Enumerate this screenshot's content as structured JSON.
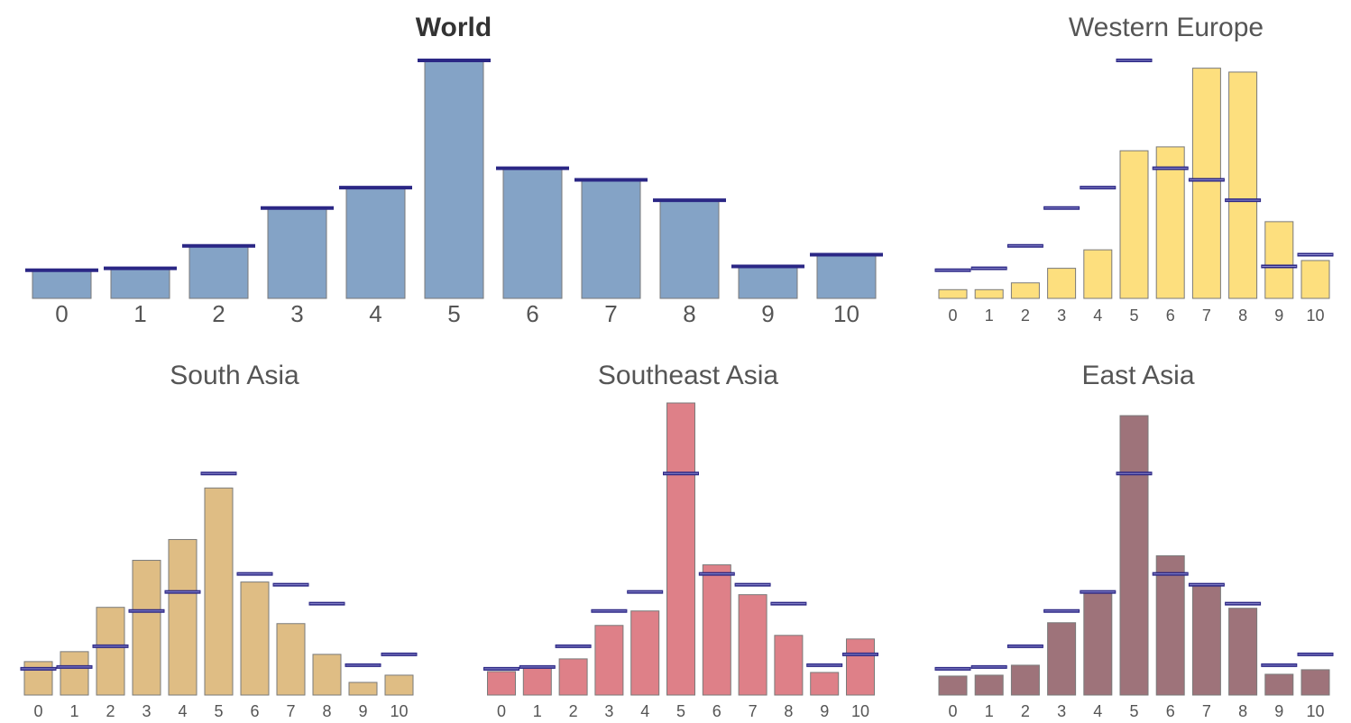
{
  "chart_data": [
    {
      "type": "bar",
      "title": "World",
      "categories": [
        "0",
        "1",
        "2",
        "3",
        "4",
        "5",
        "6",
        "7",
        "8",
        "9",
        "10"
      ],
      "values": [
        2.9,
        3.1,
        5.4,
        9.3,
        11.4,
        24.5,
        13.4,
        12.2,
        10.1,
        3.3,
        4.5
      ],
      "color": "#84a3c6",
      "ylim": [
        0,
        24.5
      ]
    },
    {
      "type": "bar",
      "title": "Western Europe",
      "categories": [
        "0",
        "1",
        "2",
        "3",
        "4",
        "5",
        "6",
        "7",
        "8",
        "9",
        "10"
      ],
      "values": [
        0.9,
        0.9,
        1.6,
        3.1,
        5.0,
        15.2,
        15.6,
        23.7,
        23.3,
        7.9,
        3.9
      ],
      "color": "#fddf7e",
      "ylim": [
        0,
        24.5
      ]
    },
    {
      "type": "bar",
      "title": "South Asia",
      "categories": [
        "0",
        "1",
        "2",
        "3",
        "4",
        "5",
        "6",
        "7",
        "8",
        "9",
        "10"
      ],
      "values": [
        3.7,
        4.8,
        9.7,
        14.9,
        17.2,
        22.9,
        12.5,
        7.9,
        4.5,
        1.4,
        2.2
      ],
      "color": "#dfbd84",
      "ylim": [
        0,
        32.3
      ]
    },
    {
      "type": "bar",
      "title": "Southeast Asia",
      "categories": [
        "0",
        "1",
        "2",
        "3",
        "4",
        "5",
        "6",
        "7",
        "8",
        "9",
        "10"
      ],
      "values": [
        2.6,
        3.0,
        4.0,
        7.7,
        9.3,
        32.3,
        14.4,
        11.1,
        6.6,
        2.5,
        6.2
      ],
      "color": "#de8088",
      "ylim": [
        0,
        32.3
      ]
    },
    {
      "type": "bar",
      "title": "East Asia",
      "categories": [
        "0",
        "1",
        "2",
        "3",
        "4",
        "5",
        "6",
        "7",
        "8",
        "9",
        "10"
      ],
      "values": [
        2.1,
        2.2,
        3.3,
        8.0,
        11.3,
        30.9,
        15.4,
        12.1,
        9.6,
        2.3,
        2.8
      ],
      "color": "#9e737a",
      "ylim": [
        0,
        32.3
      ]
    }
  ]
}
